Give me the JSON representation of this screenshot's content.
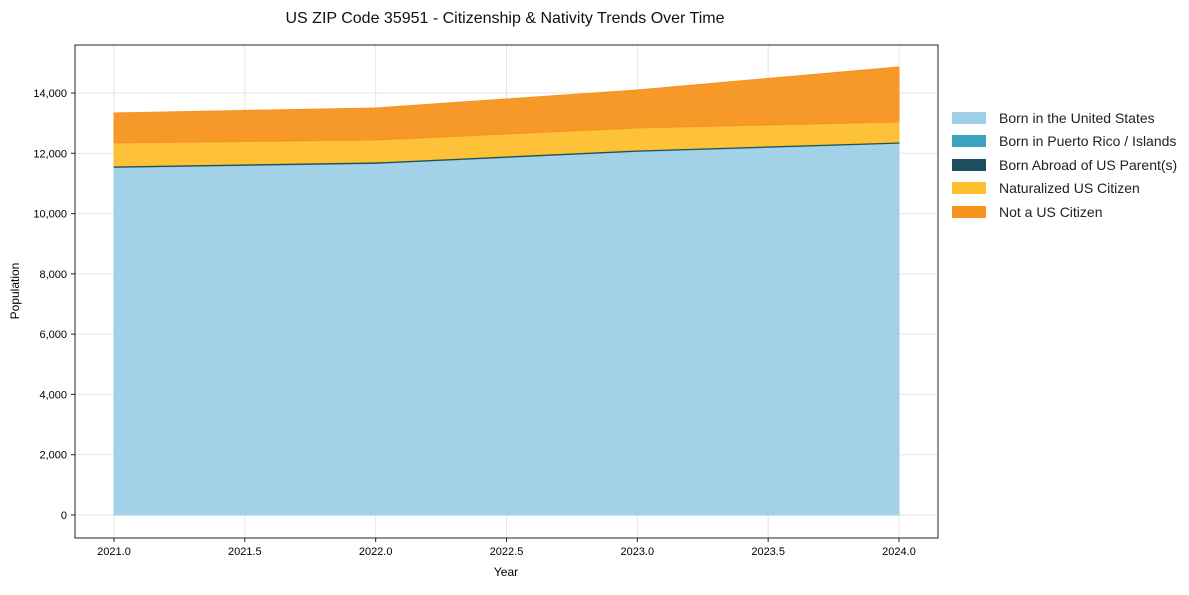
{
  "chart_data": {
    "type": "area",
    "title": "US ZIP Code 35951 - Citizenship & Nativity Trends Over Time",
    "xlabel": "Year",
    "ylabel": "Population",
    "x": [
      2021,
      2022,
      2023,
      2024
    ],
    "xlim": [
      2020.85,
      2024.15
    ],
    "ylim": [
      -800,
      15500
    ],
    "xticks": [
      2021.0,
      2021.5,
      2022.0,
      2022.5,
      2023.0,
      2023.5,
      2024.0
    ],
    "xtick_labels": [
      "2021.0",
      "2021.5",
      "2022.0",
      "2022.5",
      "2023.0",
      "2023.5",
      "2024.0"
    ],
    "yticks": [
      0,
      2000,
      4000,
      6000,
      8000,
      10000,
      12000,
      14000
    ],
    "ytick_labels": [
      "0",
      "2,000",
      "4,000",
      "6,000",
      "8,000",
      "10,000",
      "12,000",
      "14,000"
    ],
    "grid": true,
    "stacked": true,
    "legend_position": "right",
    "series": [
      {
        "name": "Born in the United States",
        "color": "#9ecfe6",
        "values": [
          11530,
          11660,
          12060,
          12330
        ]
      },
      {
        "name": "Born in Puerto Rico / Islands",
        "color": "#3aa3c0",
        "values": [
          10,
          10,
          10,
          10
        ]
      },
      {
        "name": "Born Abroad of US Parent(s)",
        "color": "#1f4e5f",
        "values": [
          40,
          43,
          40,
          36
        ]
      },
      {
        "name": "Naturalized US Citizen",
        "color": "#fdbf2d",
        "values": [
          763,
          730,
          731,
          664
        ]
      },
      {
        "name": "Not a US Citizen",
        "color": "#f7931e",
        "values": [
          995,
          1061,
          1259,
          1825
        ]
      }
    ]
  }
}
